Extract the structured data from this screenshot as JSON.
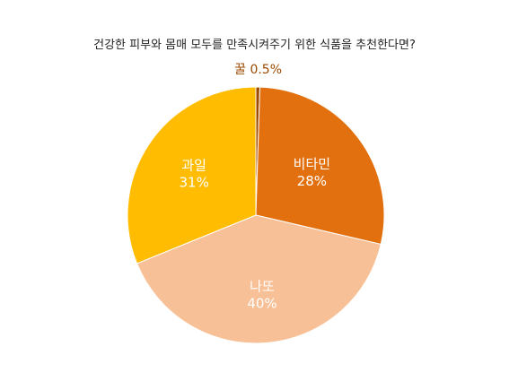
{
  "chart_data": {
    "type": "pie",
    "title": "건강한 피부와 몸매 모두를 만족시켜주기 위한 식품을 추천한다면?",
    "slices": [
      {
        "label": "꿀",
        "value": 0.5,
        "display": "0.5%",
        "color": "#9C4A00"
      },
      {
        "label": "비타민",
        "value": 28,
        "display": "28%",
        "color": "#E2700F"
      },
      {
        "label": "나또",
        "value": 40,
        "display": "40%",
        "color": "#F8C096"
      },
      {
        "label": "과일",
        "value": 31,
        "display": "31%",
        "color": "#FFBC00"
      }
    ],
    "start_angle_deg": 0,
    "direction": "clockwise",
    "legend": "none"
  }
}
